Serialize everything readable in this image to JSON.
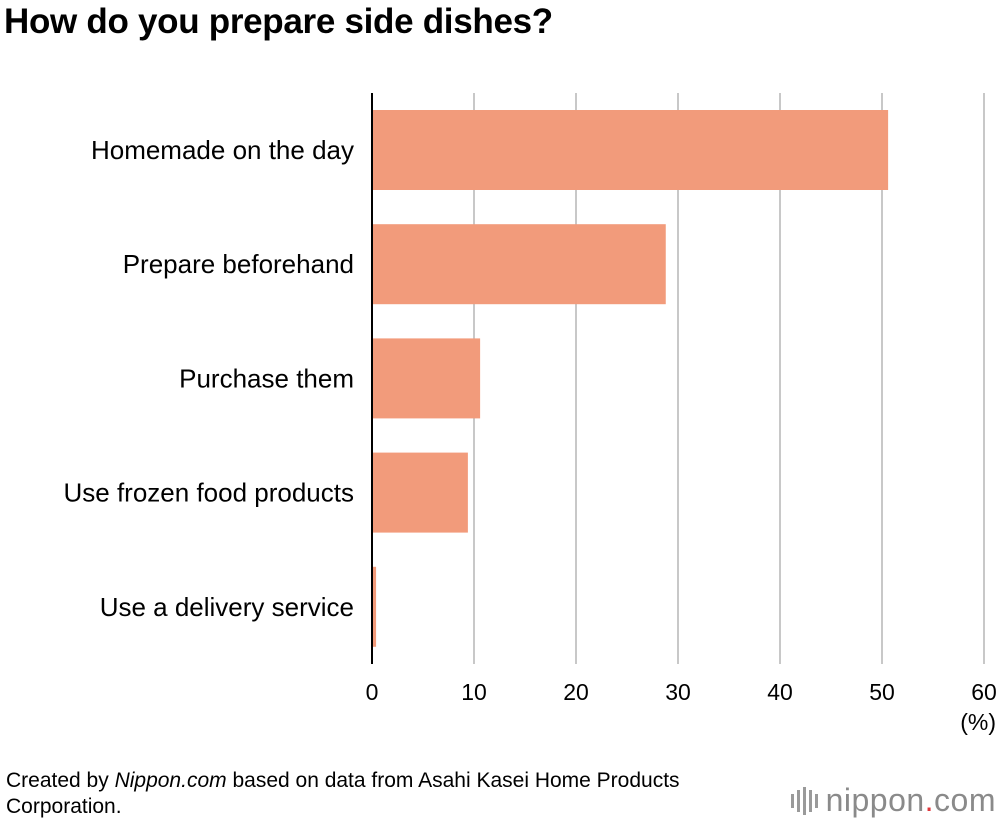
{
  "chart_data": {
    "type": "bar",
    "orientation": "horizontal",
    "title": "How do you prepare side dishes?",
    "categories": [
      "Homemade on the day",
      "Prepare beforehand",
      "Purchase them",
      "Use frozen food products",
      "Use a delivery service"
    ],
    "values": [
      50.6,
      28.8,
      10.6,
      9.4,
      0.4
    ],
    "xlim": [
      0,
      60
    ],
    "xticks": [
      0,
      10,
      20,
      30,
      40,
      50,
      60
    ],
    "xunit": "(%)",
    "grid": true,
    "bar_color": "#f29b7b",
    "grid_color": "#c8c8c8",
    "axis_color": "#000000"
  },
  "footer": {
    "credit_prefix": "Created by ",
    "credit_source": "Nippon.com",
    "credit_suffix": " based on data from Asahi Kasei Home Products Corporation."
  },
  "logo": {
    "name": "nippon",
    "dot": ".",
    "tld": "com"
  }
}
